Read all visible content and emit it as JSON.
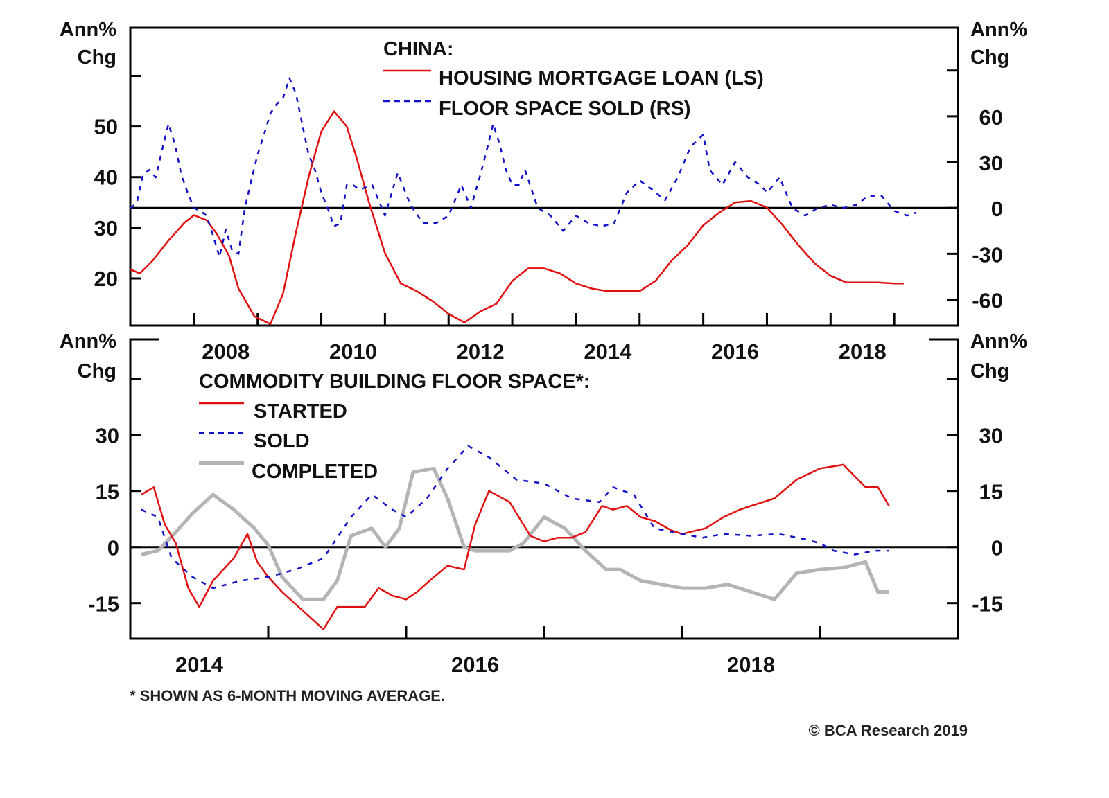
{
  "chart_data": [
    {
      "type": "line",
      "title": "CHINA:",
      "left_axis_label": [
        "Ann%",
        "Chg"
      ],
      "right_axis_label": [
        "Ann%",
        "Chg"
      ],
      "x_range": [
        2007.0,
        2020.0
      ],
      "x_tick_labels": [
        "2008",
        "2010",
        "2012",
        "2014",
        "2016",
        "2018"
      ],
      "left_ylim": [
        10.7,
        69.5
      ],
      "left_ticks": [
        20,
        30,
        40,
        50,
        60
      ],
      "left_tick_labels": [
        "20",
        "30",
        "40",
        "50"
      ],
      "right_ylim": [
        -77,
        118
      ],
      "right_ticks": [
        -60,
        -30,
        0,
        30,
        60,
        90
      ],
      "right_tick_labels": [
        "-60",
        "-30",
        "0",
        "30",
        "60"
      ],
      "zero_line_axis": "right",
      "legend_position": "top-center",
      "series": [
        {
          "name": "HOUSING MORTGAGE LOAN (LS)",
          "axis": "left",
          "style": "solid",
          "color": "#e01010",
          "x": [
            2007.0,
            2007.15,
            2007.35,
            2007.6,
            2007.85,
            2008.0,
            2008.2,
            2008.35,
            2008.55,
            2008.7,
            2008.95,
            2009.2,
            2009.4,
            2009.6,
            2009.8,
            2010.0,
            2010.2,
            2010.4,
            2010.55,
            2010.75,
            2011.0,
            2011.25,
            2011.5,
            2011.75,
            2012.0,
            2012.25,
            2012.5,
            2012.75,
            2013.0,
            2013.25,
            2013.5,
            2013.75,
            2014.0,
            2014.25,
            2014.5,
            2014.75,
            2015.0,
            2015.25,
            2015.5,
            2015.75,
            2016.0,
            2016.25,
            2016.5,
            2016.75,
            2017.0,
            2017.25,
            2017.5,
            2017.75,
            2018.0,
            2018.25,
            2018.5,
            2018.75,
            2019.0,
            2019.15
          ],
          "values": [
            21.8,
            21.0,
            23.5,
            27.5,
            31.0,
            32.5,
            31.5,
            29.0,
            24.5,
            18.0,
            12.5,
            11.0,
            17.0,
            29.0,
            40.0,
            49.0,
            53.0,
            50.0,
            44.0,
            35.0,
            25.0,
            19.0,
            17.5,
            15.5,
            13.0,
            11.3,
            13.5,
            15.0,
            19.5,
            22.0,
            22.0,
            21.0,
            19.0,
            18.0,
            17.5,
            17.5,
            17.5,
            19.5,
            23.5,
            26.5,
            30.5,
            33.0,
            35.0,
            35.3,
            34.0,
            30.5,
            26.5,
            23.0,
            20.5,
            19.2,
            19.2,
            19.2,
            19.0,
            19.0
          ]
        },
        {
          "name": "FLOOR SPACE SOLD (RS)",
          "axis": "right",
          "style": "dashed",
          "color": "#1010c8",
          "x": [
            2007.0,
            2007.1,
            2007.2,
            2007.3,
            2007.4,
            2007.5,
            2007.6,
            2007.7,
            2007.8,
            2007.9,
            2008.0,
            2008.1,
            2008.2,
            2008.3,
            2008.4,
            2008.5,
            2008.6,
            2008.7,
            2008.8,
            2008.9,
            2009.0,
            2009.1,
            2009.2,
            2009.3,
            2009.4,
            2009.5,
            2009.6,
            2009.7,
            2009.8,
            2009.9,
            2010.0,
            2010.1,
            2010.2,
            2010.3,
            2010.4,
            2010.5,
            2010.6,
            2010.8,
            2011.0,
            2011.2,
            2011.4,
            2011.6,
            2011.8,
            2012.0,
            2012.2,
            2012.35,
            2012.5,
            2012.6,
            2012.7,
            2012.8,
            2012.9,
            2013.0,
            2013.1,
            2013.2,
            2013.4,
            2013.6,
            2013.8,
            2014.0,
            2014.2,
            2014.4,
            2014.6,
            2014.8,
            2015.0,
            2015.2,
            2015.4,
            2015.6,
            2015.8,
            2016.0,
            2016.1,
            2016.3,
            2016.5,
            2016.7,
            2016.9,
            2017.0,
            2017.2,
            2017.4,
            2017.6,
            2017.8,
            2018.0,
            2018.2,
            2018.4,
            2018.6,
            2018.8,
            2019.0,
            2019.2,
            2019.35
          ],
          "values": [
            0,
            3,
            22,
            25,
            20,
            38,
            55,
            42,
            22,
            10,
            0,
            -2,
            -5,
            -18,
            -32,
            -14,
            -28,
            -30,
            0,
            18,
            35,
            48,
            62,
            68,
            72,
            85,
            75,
            55,
            35,
            25,
            10,
            0,
            -12,
            -10,
            15,
            15,
            12,
            15,
            -5,
            23,
            2,
            -10,
            -10,
            -5,
            15,
            0,
            22,
            38,
            55,
            42,
            25,
            15,
            15,
            25,
            0,
            -5,
            -15,
            -5,
            -10,
            -12,
            -10,
            10,
            18,
            12,
            5,
            20,
            40,
            48,
            25,
            15,
            30,
            20,
            15,
            10,
            20,
            0,
            -5,
            0,
            2,
            0,
            2,
            8,
            8,
            -2,
            -5,
            -3
          ]
        }
      ]
    },
    {
      "type": "line",
      "title": "COMMODITY BUILDING FLOOR SPACE*:",
      "left_axis_label": [
        "Ann%",
        "Chg"
      ],
      "right_axis_label": [
        "Ann%",
        "Chg"
      ],
      "x_range": [
        2014.0,
        2020.0
      ],
      "x_tick_labels": [
        "2014",
        "2016",
        "2018"
      ],
      "ylim": [
        -24.5,
        55.5
      ],
      "y_ticks": [
        -15,
        0,
        15,
        30,
        45
      ],
      "y_tick_labels": [
        "-15",
        "0",
        "15",
        "30"
      ],
      "legend_position": "top-left",
      "series": [
        {
          "name": "STARTED",
          "style": "solid",
          "color": "#e01010",
          "x": [
            2014.08,
            2014.17,
            2014.25,
            2014.33,
            2014.42,
            2014.5,
            2014.6,
            2014.75,
            2014.85,
            2014.92,
            2015.0,
            2015.1,
            2015.25,
            2015.4,
            2015.5,
            2015.6,
            2015.7,
            2015.8,
            2015.9,
            2016.0,
            2016.08,
            2016.17,
            2016.3,
            2016.42,
            2016.5,
            2016.6,
            2016.75,
            2016.9,
            2017.0,
            2017.1,
            2017.2,
            2017.3,
            2017.42,
            2017.5,
            2017.6,
            2017.7,
            2017.8,
            2017.92,
            2018.0,
            2018.17,
            2018.3,
            2018.42,
            2018.5,
            2018.67,
            2018.83,
            2019.0,
            2019.17,
            2019.33,
            2019.42,
            2019.5
          ],
          "values": [
            14,
            16,
            6,
            1,
            -11,
            -16,
            -9,
            -3,
            3.5,
            -4,
            -8,
            -12,
            -17,
            -22,
            -16,
            -16,
            -16,
            -11,
            -13,
            -14,
            -12,
            -9,
            -5,
            -6,
            6,
            15,
            12,
            3,
            1.5,
            2.5,
            2.5,
            4,
            11,
            10,
            11,
            8,
            7,
            4.5,
            3.5,
            5,
            8,
            10,
            11,
            13,
            18,
            21,
            22,
            16,
            16,
            11
          ]
        },
        {
          "name": "SOLD",
          "style": "dashed",
          "color": "#1010c8",
          "x": [
            2014.08,
            2014.2,
            2014.3,
            2014.45,
            2014.6,
            2014.8,
            2015.0,
            2015.2,
            2015.4,
            2015.6,
            2015.75,
            2015.9,
            2016.0,
            2016.15,
            2016.3,
            2016.45,
            2016.6,
            2016.8,
            2017.0,
            2017.2,
            2017.4,
            2017.5,
            2017.65,
            2017.8,
            2018.0,
            2018.15,
            2018.3,
            2018.5,
            2018.7,
            2018.9,
            2019.0,
            2019.1,
            2019.25,
            2019.4,
            2019.5
          ],
          "values": [
            10,
            8,
            -3,
            -8,
            -11,
            -9,
            -8,
            -6,
            -3,
            8,
            14,
            10,
            8,
            13,
            21,
            27,
            24,
            18,
            17,
            13,
            12,
            16,
            14,
            5,
            3.5,
            2.5,
            3.5,
            3,
            3.5,
            2,
            1,
            -1,
            -2,
            -1,
            -1
          ]
        },
        {
          "name": "COMPLETED",
          "style": "thick-solid",
          "color": "#b4b4b4",
          "x": [
            2014.08,
            2014.2,
            2014.33,
            2014.45,
            2014.6,
            2014.75,
            2014.9,
            2015.0,
            2015.1,
            2015.25,
            2015.4,
            2015.5,
            2015.6,
            2015.75,
            2015.85,
            2015.95,
            2016.05,
            2016.2,
            2016.3,
            2016.42,
            2016.5,
            2016.6,
            2016.75,
            2016.85,
            2017.0,
            2017.15,
            2017.3,
            2017.45,
            2017.55,
            2017.7,
            2017.85,
            2018.0,
            2018.17,
            2018.33,
            2018.5,
            2018.67,
            2018.83,
            2019.0,
            2019.17,
            2019.33,
            2019.42,
            2019.5
          ],
          "values": [
            -2,
            -1,
            4,
            9,
            14,
            10,
            5,
            0.5,
            -8,
            -14,
            -14,
            -9,
            3,
            5,
            0,
            5,
            20,
            21,
            13,
            0,
            -1,
            -1,
            -1,
            1,
            8,
            5,
            -1,
            -6,
            -6,
            -9,
            -10,
            -11,
            -11,
            -10,
            -12,
            -14,
            -7,
            -6,
            -5.5,
            -4,
            -12,
            -12
          ]
        }
      ]
    }
  ],
  "labels": {
    "unit_line1": "Ann%",
    "unit_line2": "Chg",
    "top_title": "CHINA:",
    "top_legend": [
      "HOUSING MORTGAGE LOAN (LS)",
      "FLOOR SPACE SOLD (RS)"
    ],
    "bottom_title": "COMMODITY BUILDING FLOOR SPACE*:",
    "bottom_legend": [
      "STARTED",
      "SOLD",
      "COMPLETED"
    ],
    "footnote": "* SHOWN AS 6-MONTH MOVING AVERAGE.",
    "copyright": "© BCA Research 2019"
  }
}
